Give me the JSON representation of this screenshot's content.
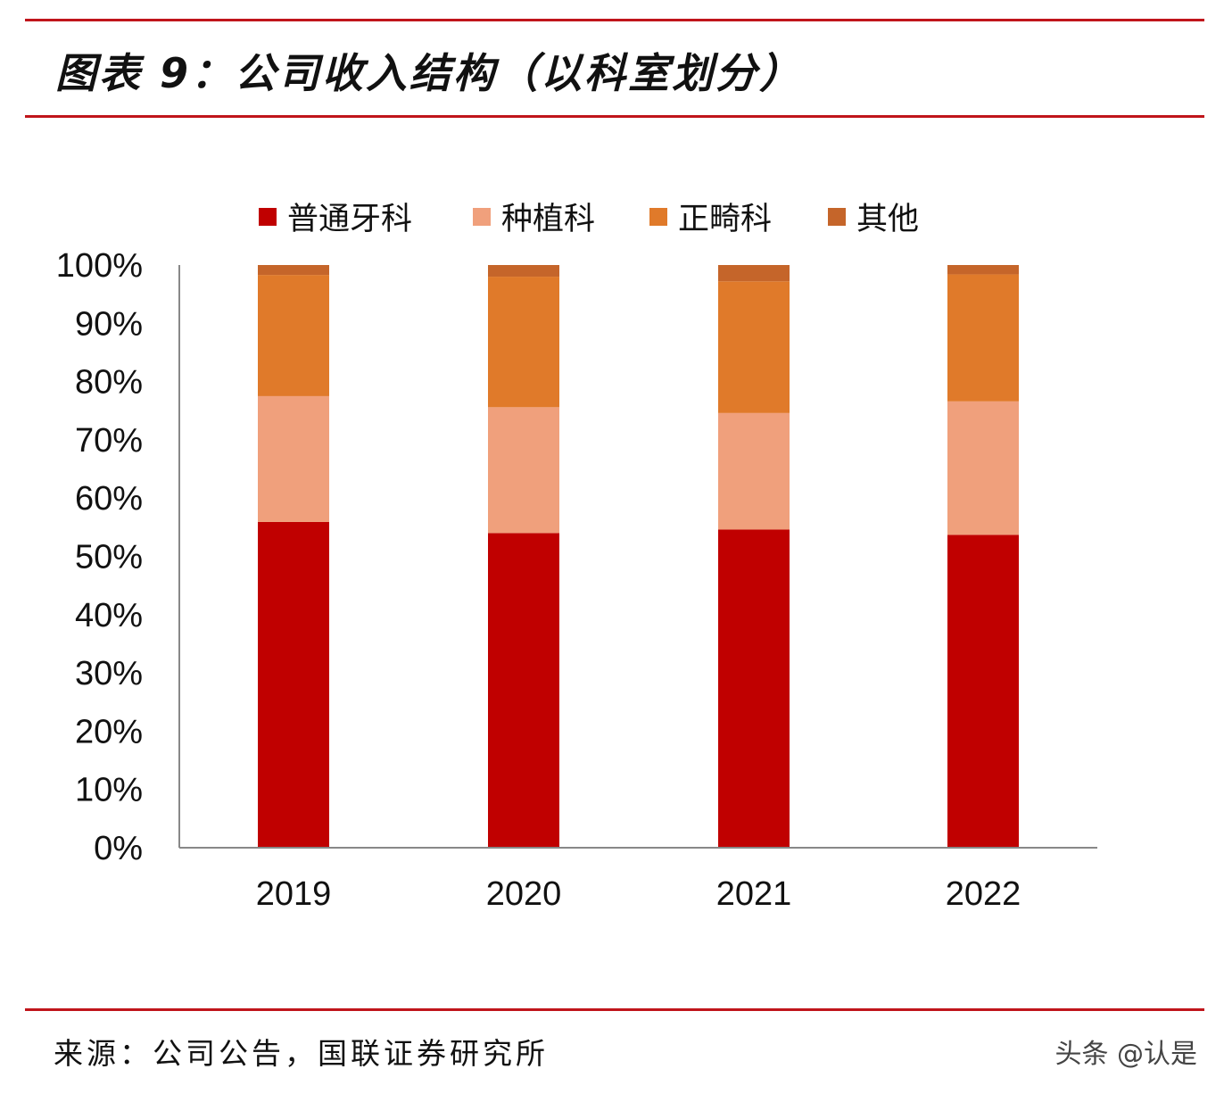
{
  "title": "图表 9：公司收入结构（以科室划分）",
  "source": "来源：公司公告，国联证券研究所",
  "watermark": "头条 @认是",
  "colors": {
    "rule": "#c0151b",
    "axis": "#888888"
  },
  "chart_data": {
    "type": "bar",
    "stacked": true,
    "title": "",
    "xlabel": "",
    "ylabel": "",
    "ylim": [
      0,
      100
    ],
    "y_ticks": [
      "0%",
      "10%",
      "20%",
      "30%",
      "40%",
      "50%",
      "60%",
      "70%",
      "80%",
      "90%",
      "100%"
    ],
    "legend_position": "top",
    "categories": [
      "2019",
      "2020",
      "2021",
      "2022"
    ],
    "series": [
      {
        "name": "普通牙科",
        "color": "#c00000",
        "values": [
          55.9,
          54.0,
          54.6,
          53.7
        ]
      },
      {
        "name": "种植科",
        "color": "#f0a07c",
        "values": [
          21.6,
          21.6,
          20.0,
          22.9
        ]
      },
      {
        "name": "正畸科",
        "color": "#e07a2a",
        "values": [
          20.8,
          22.4,
          22.6,
          21.8
        ]
      },
      {
        "name": "其他",
        "color": "#c5652a",
        "values": [
          1.7,
          2.0,
          2.8,
          1.6
        ]
      }
    ]
  }
}
